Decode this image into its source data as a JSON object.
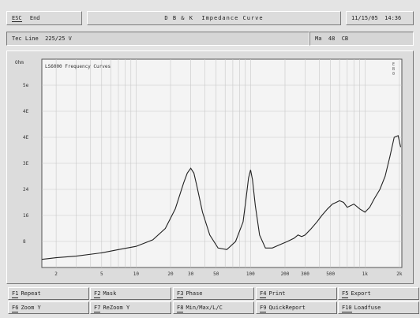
{
  "header": {
    "esc_key": "ESC",
    "esc_label": "End",
    "title": "D B & K  Impedance Curve",
    "datetime": "11/15/05  14:36"
  },
  "status": {
    "line_info": "Tec Line  225/25 V",
    "output": "Ma  48  CB"
  },
  "graph": {
    "inner_title": "LS6000 Frequency Curves",
    "corner_label": "E\nB\n0",
    "y_unit": "Ohm",
    "y_ticks": [
      "5e",
      "4E",
      "4E",
      "3E",
      "24",
      "16",
      "8"
    ],
    "x_ticks": [
      "2",
      "5",
      "10",
      "20",
      "30",
      "50",
      "100",
      "200",
      "300",
      "500",
      "1k",
      "2k"
    ]
  },
  "chart_data": {
    "type": "line",
    "x_scale": "log",
    "xlim": [
      1.5,
      2100
    ],
    "ylim": [
      0,
      64
    ],
    "series": [
      {
        "x": [
          1.5,
          2,
          3,
          5,
          7,
          10,
          14,
          18,
          22,
          26,
          28,
          30,
          32,
          34,
          38,
          44,
          52,
          62,
          74,
          86,
          92,
          96,
          100,
          104,
          110,
          120,
          135,
          155,
          180,
          210,
          240,
          260,
          280,
          300,
          340,
          380,
          420,
          470,
          520,
          560,
          600,
          650,
          700,
          800,
          900,
          1000,
          1100,
          1200,
          1350,
          1500,
          1650,
          1800,
          1950,
          2050
        ],
        "y": [
          2.5,
          3,
          3.5,
          4.5,
          5.5,
          6.5,
          8.5,
          12,
          18,
          26,
          29,
          30.5,
          29,
          25,
          17,
          10,
          6,
          5.5,
          8,
          14,
          22,
          27.5,
          30,
          27,
          19,
          10,
          6,
          6,
          7,
          8,
          9,
          10,
          9.5,
          10,
          12,
          14,
          16,
          18,
          19.5,
          20,
          20.5,
          20,
          18.5,
          19.5,
          18,
          17,
          18.5,
          21,
          24,
          28,
          34,
          40,
          40.5,
          37
        ]
      }
    ]
  },
  "function_keys": [
    {
      "key": "F1",
      "label": "Repeat"
    },
    {
      "key": "F2",
      "label": "Mask"
    },
    {
      "key": "F3",
      "label": "Phase"
    },
    {
      "key": "F4",
      "label": "Print"
    },
    {
      "key": "F5",
      "label": "Export"
    },
    {
      "key": "F6",
      "label": "Zoom Y"
    },
    {
      "key": "F7",
      "label": "ReZoom Y"
    },
    {
      "key": "F8",
      "label": "Min/Max/L/C"
    },
    {
      "key": "F9",
      "label": "QuickReport"
    },
    {
      "key": "F10",
      "label": "Loadfuse"
    }
  ]
}
